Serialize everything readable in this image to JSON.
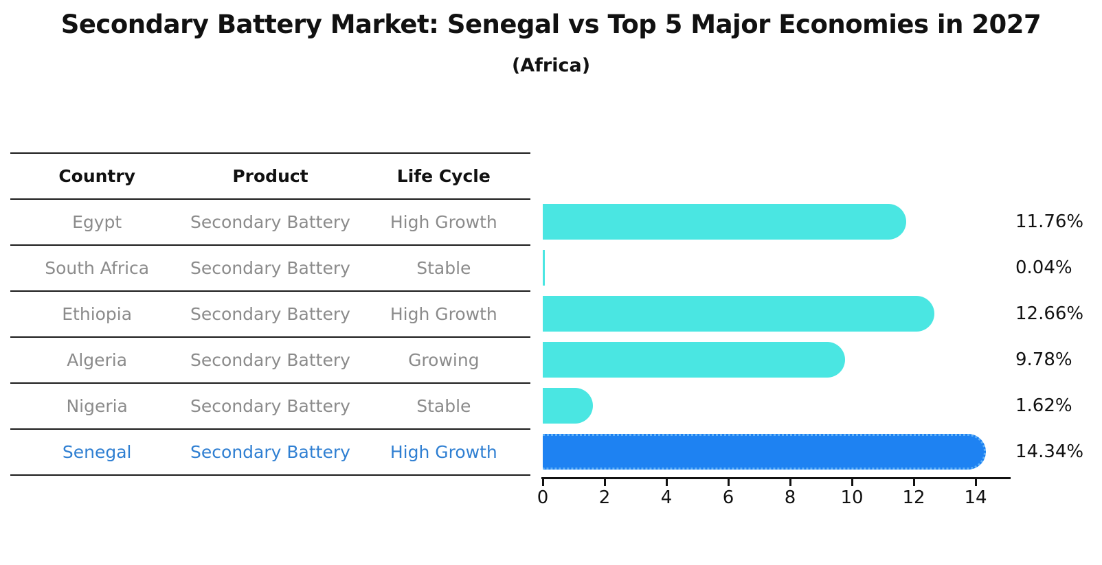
{
  "title": "Secondary Battery Market: Senegal vs Top 5 Major Economies in 2027",
  "subtitle": "(Africa)",
  "table": {
    "headers": [
      "Country",
      "Product",
      "Life Cycle"
    ],
    "rows": [
      {
        "country": "Egypt",
        "product": "Secondary Battery",
        "life_cycle": "High Growth",
        "highlight": false
      },
      {
        "country": "South Africa",
        "product": "Secondary Battery",
        "life_cycle": "Stable",
        "highlight": false
      },
      {
        "country": "Ethiopia",
        "product": "Secondary Battery",
        "life_cycle": "High Growth",
        "highlight": false
      },
      {
        "country": "Algeria",
        "product": "Secondary Battery",
        "life_cycle": "Growing",
        "highlight": false
      },
      {
        "country": "Nigeria",
        "product": "Secondary Battery",
        "life_cycle": "Stable",
        "highlight": false
      },
      {
        "country": "Senegal",
        "product": "Secondary Battery",
        "life_cycle": "High Growth",
        "highlight": true
      }
    ]
  },
  "chart_data": {
    "type": "bar",
    "orientation": "horizontal",
    "categories": [
      "Egypt",
      "South Africa",
      "Ethiopia",
      "Algeria",
      "Nigeria",
      "Senegal"
    ],
    "values": [
      11.76,
      0.04,
      12.66,
      9.78,
      1.62,
      14.34
    ],
    "value_labels": [
      "11.76%",
      "0.04%",
      "12.66%",
      "9.78%",
      "1.62%",
      "14.34%"
    ],
    "x_ticks": [
      0,
      2,
      4,
      6,
      8,
      10,
      12,
      14
    ],
    "xlim": [
      0,
      15.1
    ],
    "grid": false,
    "legend": null,
    "highlight_index": 5,
    "bar_color": "#4ae6e2",
    "highlight_bar_color": "#1e82f2",
    "highlight_border_style": "dotted"
  },
  "colors": {
    "background": "#ffffff",
    "title_text": "#111111",
    "table_header_text": "#111111",
    "table_row_text": "#8b8b8b",
    "highlight_row_text": "#2f7fd2",
    "axis": "#111111",
    "value_label_text": "#111111",
    "bar_cyan": "#4ae6e2",
    "bar_blue": "#1e82f2"
  }
}
